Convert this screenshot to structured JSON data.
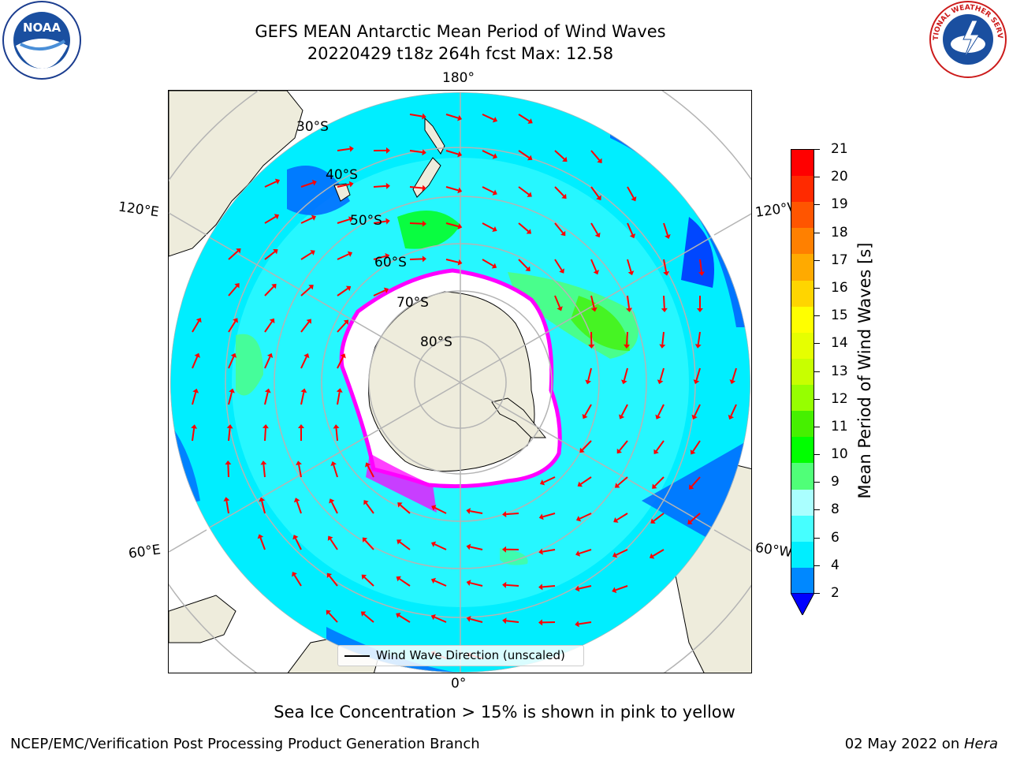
{
  "title": {
    "line1": "GEFS MEAN Antarctic Mean Period of Wind Waves",
    "line2": "20220429 t18z 264h fcst   Max: 12.58"
  },
  "logos": {
    "left": "NOAA",
    "right": "NATIONAL WEATHER SERVICE"
  },
  "map": {
    "projection": "south-polar-stereographic",
    "longitude_labels": {
      "top": "180°",
      "bottom": "0°",
      "left_upper": "120°E",
      "left_lower": "60°E",
      "right_upper": "120°W",
      "right_lower": "60°W"
    },
    "latitude_labels": [
      "30°S",
      "40°S",
      "50°S",
      "60°S",
      "70°S",
      "80°S"
    ],
    "legend_text": "Wind Wave Direction (unscaled)",
    "colors": {
      "land": "#eeecdc",
      "ocean_base": "#00eeff",
      "arrow": "#ff0000",
      "ice_edge": "#ff00ff",
      "grid": "#b4b4b4"
    }
  },
  "colorbar": {
    "label": "Mean Period of Wind Waves [s]",
    "ticks": [
      "21",
      "20",
      "19",
      "18",
      "17",
      "16",
      "15",
      "14",
      "13",
      "12",
      "11",
      "10",
      "9",
      "8",
      "6",
      "4",
      "2"
    ],
    "colors": [
      "#ff0000",
      "#ff2a00",
      "#ff5500",
      "#ff8000",
      "#ffaa00",
      "#ffd500",
      "#ffff00",
      "#e6ff00",
      "#c8ff00",
      "#96ff00",
      "#46f000",
      "#00ff00",
      "#50ff78",
      "#aaffff",
      "#46ffff",
      "#00eeff",
      "#0088ff"
    ],
    "extend_color": "#0000ff"
  },
  "note": "Sea Ice Concentration > 15% is shown in pink to yellow",
  "footer": {
    "left": "NCEP/EMC/Verification Post Processing Product Generation Branch",
    "right_date": "02 May 2022 on ",
    "right_host": "Hera"
  }
}
